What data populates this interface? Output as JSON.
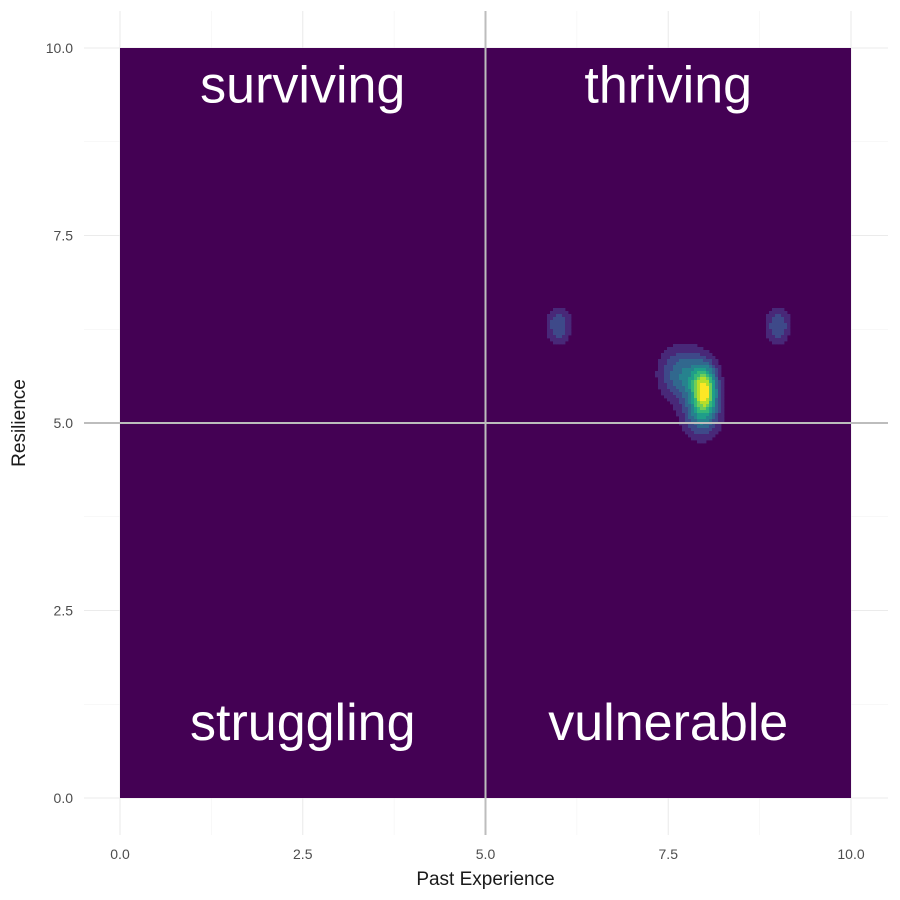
{
  "chart_data": {
    "type": "heatmap",
    "subtype": "2d-density-contour",
    "title": "",
    "xlabel": "Past Experience",
    "ylabel": "Resilience",
    "xlim": [
      0,
      10
    ],
    "ylim": [
      0,
      10
    ],
    "x_ticks": [
      "0.0",
      "2.5",
      "5.0",
      "7.5",
      "10.0"
    ],
    "y_ticks": [
      "0.0",
      "2.5",
      "5.0",
      "7.5",
      "10.0"
    ],
    "x_tick_values": [
      0,
      2.5,
      5,
      7.5,
      10
    ],
    "y_tick_values": [
      0,
      2.5,
      5,
      7.5,
      10
    ],
    "grid": true,
    "reference_lines": {
      "x": 5,
      "y": 5
    },
    "quadrant_labels": [
      {
        "text": "surviving",
        "x": 2.5,
        "y": 9.5
      },
      {
        "text": "thriving",
        "x": 7.5,
        "y": 9.5
      },
      {
        "text": "struggling",
        "x": 2.5,
        "y": 1.0
      },
      {
        "text": "vulnerable",
        "x": 7.5,
        "y": 1.0
      }
    ],
    "density_peaks": [
      {
        "x": 8.0,
        "y": 5.45,
        "sx": 0.12,
        "sy": 0.22,
        "weight": 1.0
      },
      {
        "x": 7.7,
        "y": 5.65,
        "sx": 0.22,
        "sy": 0.25,
        "weight": 0.5
      },
      {
        "x": 7.95,
        "y": 5.1,
        "sx": 0.18,
        "sy": 0.22,
        "weight": 0.45
      },
      {
        "x": 6.0,
        "y": 6.3,
        "sx": 0.12,
        "sy": 0.17,
        "weight": 0.38
      },
      {
        "x": 9.0,
        "y": 6.3,
        "sx": 0.12,
        "sy": 0.17,
        "weight": 0.38
      }
    ],
    "colorscale": "viridis",
    "background_fill": "#440154"
  }
}
